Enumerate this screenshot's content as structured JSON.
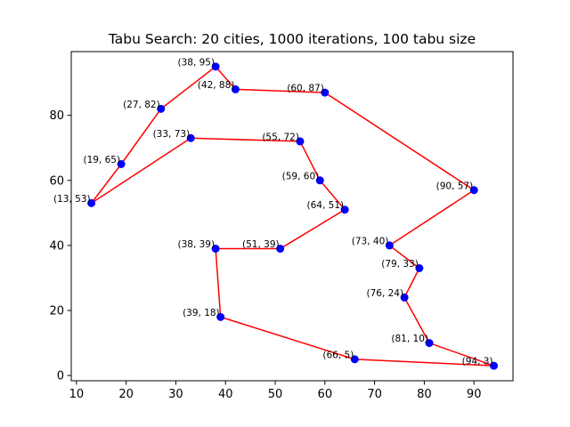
{
  "chart_data": {
    "type": "line",
    "title": "Tabu Search: 20 cities, 1000 iterations, 100 tabu size",
    "xlabel": "",
    "ylabel": "",
    "xlim": [
      8.95,
      97.85
    ],
    "ylim": [
      -1.6,
      99.6
    ],
    "xticks": [
      10,
      20,
      30,
      40,
      50,
      60,
      70,
      80,
      90
    ],
    "yticks": [
      0,
      20,
      40,
      60,
      80
    ],
    "grid": false,
    "line_color": "#ff0000",
    "marker_color": "#0000ff",
    "series": [
      {
        "tour": [
          [
            38,
            95
          ],
          [
            42,
            88
          ],
          [
            60,
            87
          ],
          [
            90,
            57
          ],
          [
            73,
            40
          ],
          [
            79,
            33
          ],
          [
            76,
            24
          ],
          [
            81,
            10
          ],
          [
            94,
            3
          ],
          [
            66,
            5
          ],
          [
            39,
            18
          ],
          [
            38,
            39
          ],
          [
            51,
            39
          ],
          [
            64,
            51
          ],
          [
            59,
            60
          ],
          [
            55,
            72
          ],
          [
            33,
            73
          ],
          [
            13,
            53
          ],
          [
            19,
            65
          ],
          [
            27,
            82
          ],
          [
            38,
            95
          ]
        ]
      }
    ],
    "point_labels": [
      {
        "text": "(38, 95)",
        "x": 38,
        "y": 95
      },
      {
        "text": "(42, 88)",
        "x": 42,
        "y": 88
      },
      {
        "text": "(60, 87)",
        "x": 60,
        "y": 87
      },
      {
        "text": "(90, 57)",
        "x": 90,
        "y": 57
      },
      {
        "text": "(73, 40)",
        "x": 73,
        "y": 40
      },
      {
        "text": "(79, 33)",
        "x": 79,
        "y": 33
      },
      {
        "text": "(76, 24)",
        "x": 76,
        "y": 24
      },
      {
        "text": "(81, 10)",
        "x": 81,
        "y": 10
      },
      {
        "text": "(94, 3)",
        "x": 94,
        "y": 3
      },
      {
        "text": "(66, 5)",
        "x": 66,
        "y": 5
      },
      {
        "text": "(39, 18)",
        "x": 39,
        "y": 18
      },
      {
        "text": "(38, 39)",
        "x": 38,
        "y": 39
      },
      {
        "text": "(51, 39)",
        "x": 51,
        "y": 39
      },
      {
        "text": "(64, 51)",
        "x": 64,
        "y": 51
      },
      {
        "text": "(59, 60)",
        "x": 59,
        "y": 60
      },
      {
        "text": "(55, 72)",
        "x": 55,
        "y": 72
      },
      {
        "text": "(33, 73)",
        "x": 33,
        "y": 73
      },
      {
        "text": "(13, 53)",
        "x": 13,
        "y": 53
      },
      {
        "text": "(19, 65)",
        "x": 19,
        "y": 65
      },
      {
        "text": "(27, 82)",
        "x": 27,
        "y": 82
      }
    ]
  }
}
